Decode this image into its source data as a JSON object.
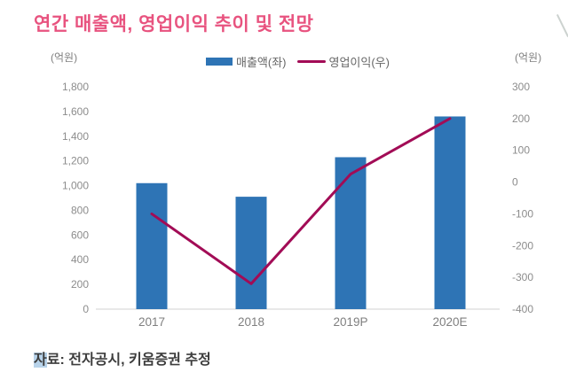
{
  "title": "연간 매출액, 영업이익 추이 및 전망",
  "footer": {
    "highlight": "자",
    "rest": "료: 전자공시, 키움증권 추정"
  },
  "colors": {
    "title_pink": "#e8537f",
    "bar_blue": "#2e74b5",
    "line_magenta": "#a20c56",
    "axis_text": "#8c8c8c",
    "baseline_gray": "#d9d9d9",
    "footer_text": "#3d3d3d",
    "highlight_blue": "#b8d3ea"
  },
  "chart_data": {
    "type": "combo-bar-line",
    "title": "연간 매출액, 영업이익 추이 및 전망",
    "categories": [
      "2017",
      "2018",
      "2019P",
      "2020E"
    ],
    "series": [
      {
        "name": "매출액(좌)",
        "type": "bar",
        "axis": "left",
        "color": "#2e74b5",
        "values": [
          1020,
          910,
          1230,
          1560
        ]
      },
      {
        "name": "영업이익(우)",
        "type": "line",
        "axis": "right",
        "color": "#a20c56",
        "values": [
          -100,
          -320,
          25,
          200
        ]
      }
    ],
    "left_axis": {
      "label": "(억원)",
      "min": 0,
      "max": 1800,
      "step": 200
    },
    "right_axis": {
      "label": "(억원)",
      "min": -400,
      "max": 300,
      "step": 100
    },
    "grid": false,
    "legend_position": "top-center",
    "xlabel": "",
    "ylabel_left": "(억원)",
    "ylabel_right": "(억원)"
  }
}
